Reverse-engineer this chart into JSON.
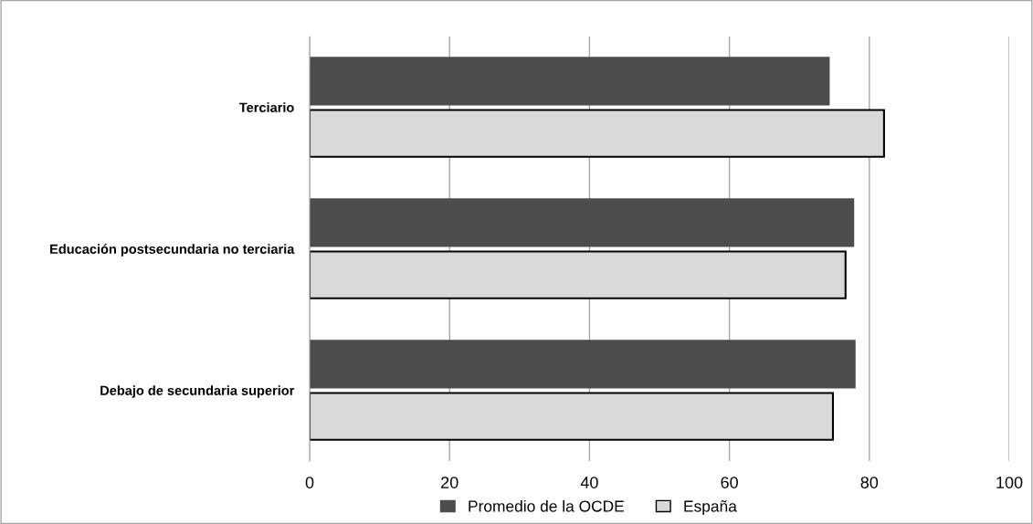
{
  "chart_data": {
    "type": "bar",
    "orientation": "horizontal",
    "categories": [
      "Terciario",
      "Educación postsecundaria no terciaria",
      "Debajo de secundaria superior"
    ],
    "series": [
      {
        "name": "Promedio de la OCDE",
        "color": "#4d4d4d",
        "values": [
          74.2,
          77.7,
          77.9
        ]
      },
      {
        "name": "España",
        "color": "#d9d9d9",
        "values": [
          82.1,
          76.6,
          74.8
        ]
      }
    ],
    "xlim": [
      0,
      100
    ],
    "xticks": [
      0,
      20,
      40,
      60,
      80,
      100
    ],
    "grid": "x",
    "legend": "bottom"
  }
}
